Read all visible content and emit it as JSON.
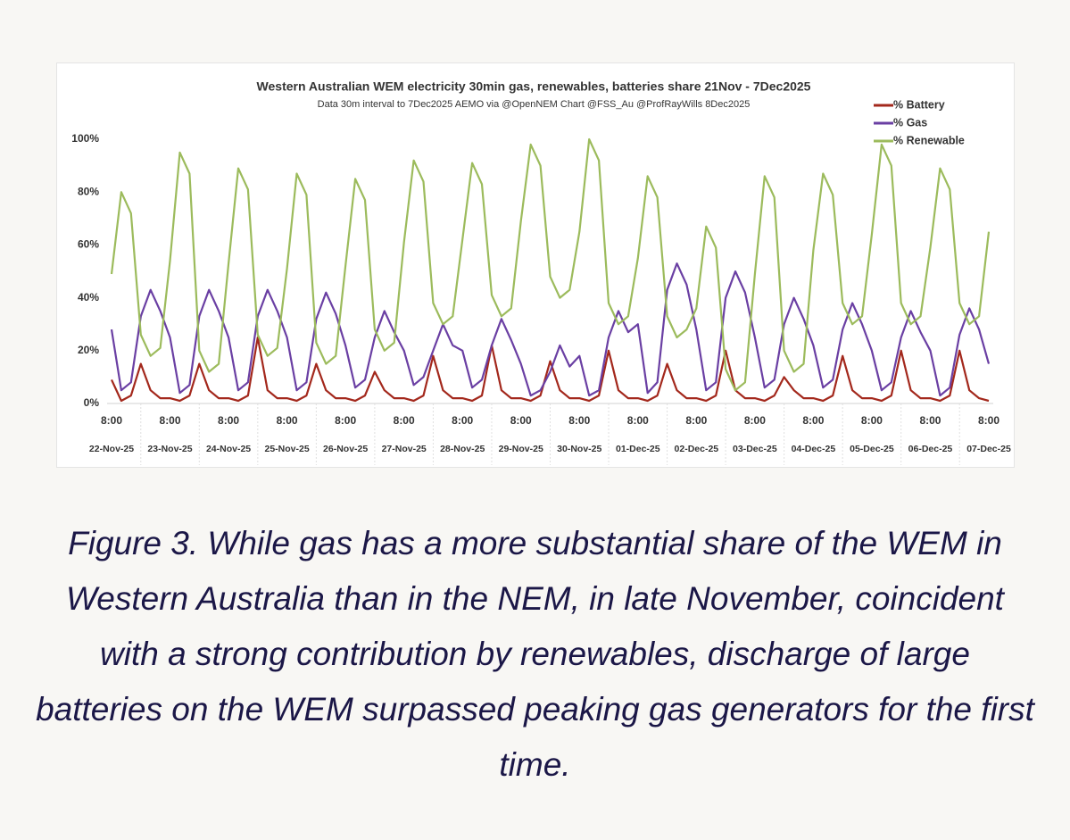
{
  "chart_data": {
    "type": "line",
    "title": "Western Australian WEM electricity 30min gas, renewables, batteries share 21Nov - 7Dec2025",
    "subtitle": "Data 30m interval to 7Dec2025  AEMO via @OpenNEM Chart @FSS_Au @ProfRayWills 8Dec2025",
    "tick_time": "8:00",
    "categories": [
      "22-Nov-25",
      null,
      null,
      null,
      null,
      null,
      "23-Nov-25",
      null,
      null,
      null,
      null,
      null,
      "24-Nov-25",
      null,
      null,
      null,
      null,
      null,
      "25-Nov-25",
      null,
      null,
      null,
      null,
      null,
      "26-Nov-25",
      null,
      null,
      null,
      null,
      null,
      "27-Nov-25",
      null,
      null,
      null,
      null,
      null,
      "28-Nov-25",
      null,
      null,
      null,
      null,
      null,
      "29-Nov-25",
      null,
      null,
      null,
      null,
      null,
      "30-Nov-25",
      null,
      null,
      null,
      null,
      null,
      "01-Dec-25",
      null,
      null,
      null,
      null,
      null,
      "02-Dec-25",
      null,
      null,
      null,
      null,
      null,
      "03-Dec-25",
      null,
      null,
      null,
      null,
      null,
      "04-Dec-25",
      null,
      null,
      null,
      null,
      null,
      "05-Dec-25",
      null,
      null,
      null,
      null,
      null,
      "06-Dec-25",
      null,
      null,
      null,
      null,
      null,
      "07-Dec-25"
    ],
    "series": [
      {
        "name": "% Battery",
        "color": "#a3281c",
        "values": [
          9,
          1,
          3,
          15,
          5,
          2,
          2,
          1,
          3,
          15,
          5,
          2,
          2,
          1,
          3,
          25,
          5,
          2,
          2,
          1,
          3,
          15,
          5,
          2,
          2,
          1,
          3,
          12,
          5,
          2,
          2,
          1,
          3,
          18,
          5,
          2,
          2,
          1,
          3,
          22,
          5,
          2,
          2,
          1,
          3,
          16,
          5,
          2,
          2,
          1,
          3,
          20,
          5,
          2,
          2,
          1,
          3,
          15,
          5,
          2,
          2,
          1,
          3,
          20,
          5,
          2,
          2,
          1,
          3,
          10,
          5,
          2,
          2,
          1,
          3,
          18,
          5,
          2,
          2,
          1,
          3,
          20,
          5,
          2,
          2,
          1,
          3,
          20,
          5,
          2,
          1
        ]
      },
      {
        "name": "% Gas",
        "color": "#6a3fa3",
        "values": [
          28,
          5,
          8,
          33,
          43,
          35,
          25,
          4,
          7,
          33,
          43,
          35,
          25,
          5,
          8,
          33,
          43,
          35,
          25,
          5,
          8,
          32,
          42,
          34,
          22,
          6,
          9,
          25,
          35,
          27,
          20,
          7,
          10,
          20,
          30,
          22,
          20,
          6,
          9,
          22,
          32,
          24,
          15,
          3,
          5,
          12,
          22,
          14,
          18,
          3,
          5,
          25,
          35,
          27,
          30,
          4,
          8,
          43,
          53,
          45,
          28,
          5,
          8,
          40,
          50,
          42,
          25,
          6,
          9,
          30,
          40,
          32,
          22,
          6,
          9,
          28,
          38,
          30,
          20,
          5,
          8,
          25,
          35,
          27,
          20,
          3,
          6,
          26,
          36,
          28,
          15
        ]
      },
      {
        "name": "% Renewable",
        "color": "#9cbb5c",
        "values": [
          49,
          80,
          72,
          26,
          18,
          21,
          54,
          95,
          87,
          20,
          12,
          15,
          53,
          89,
          81,
          26,
          18,
          21,
          51,
          87,
          79,
          23,
          15,
          18,
          52,
          85,
          77,
          28,
          20,
          23,
          61,
          92,
          84,
          38,
          30,
          33,
          62,
          91,
          83,
          41,
          33,
          36,
          69,
          98,
          90,
          48,
          40,
          43,
          65,
          100,
          92,
          38,
          30,
          33,
          55,
          86,
          78,
          33,
          25,
          28,
          36,
          67,
          59,
          13,
          5,
          8,
          49,
          86,
          78,
          20,
          12,
          15,
          58,
          87,
          79,
          38,
          30,
          33,
          64,
          98,
          90,
          38,
          30,
          33,
          59,
          89,
          81,
          38,
          30,
          33,
          65
        ]
      }
    ],
    "ylim": [
      0,
      100
    ],
    "yticks": [
      {
        "value": 0,
        "label": "0%"
      },
      {
        "value": 20,
        "label": "20%"
      },
      {
        "value": 40,
        "label": "40%"
      },
      {
        "value": 60,
        "label": "60%"
      },
      {
        "value": 80,
        "label": "80%"
      },
      {
        "value": 100,
        "label": "100%"
      }
    ],
    "legend": "top-right"
  },
  "caption": "Figure 3. While gas has a more substantial share of the WEM in Western Australia than in the NEM, in late November, coincident with a strong contribution by renewables, discharge of large batteries on the WEM surpassed peaking gas generators for the first time."
}
